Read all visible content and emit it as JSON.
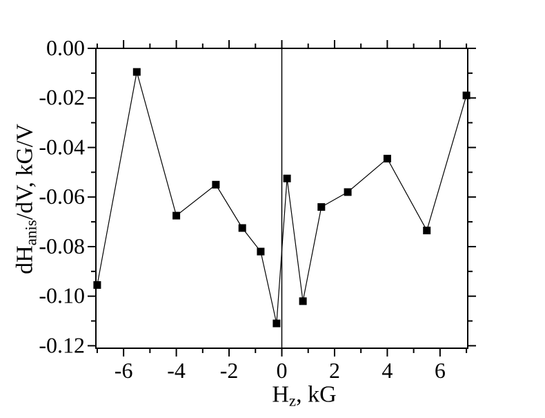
{
  "chart_data": {
    "type": "line",
    "title": "",
    "xlabel": {
      "text": "H",
      "sub": "z",
      "suffix": ", kG"
    },
    "ylabel": {
      "text": "dH",
      "sub": "anis",
      "suffix": "/dV, kG/V"
    },
    "xlim": [
      -7.05,
      7.05
    ],
    "ylim": [
      -0.121,
      0
    ],
    "x": [
      -7,
      -5.5,
      -4,
      -2.5,
      -1.5,
      -0.8,
      -0.2,
      0.2,
      0.8,
      1.5,
      2.5,
      4,
      5.5,
      7
    ],
    "y": [
      -0.0955,
      -0.0095,
      -0.0675,
      -0.055,
      -0.0725,
      -0.082,
      -0.111,
      -0.0525,
      -0.102,
      -0.064,
      -0.058,
      -0.0445,
      -0.0735,
      -0.019
    ],
    "xticks_major": [
      {
        "v": -6,
        "label": "-6"
      },
      {
        "v": -4,
        "label": "-4"
      },
      {
        "v": -2,
        "label": "-2"
      },
      {
        "v": 0,
        "label": "0"
      },
      {
        "v": 2,
        "label": "2"
      },
      {
        "v": 4,
        "label": "4"
      },
      {
        "v": 6,
        "label": "6"
      }
    ],
    "xticks_minor": [
      -7,
      -5,
      -3,
      -1,
      1,
      3,
      5,
      7
    ],
    "yticks_major": [
      {
        "v": 0,
        "label": "0.00"
      },
      {
        "v": -0.02,
        "label": "-0.02"
      },
      {
        "v": -0.04,
        "label": "-0.04"
      },
      {
        "v": -0.06,
        "label": "-0.06"
      },
      {
        "v": -0.08,
        "label": "-0.08"
      },
      {
        "v": -0.1,
        "label": "-0.10"
      },
      {
        "v": -0.12,
        "label": "-0.12"
      }
    ],
    "yticks_minor": [
      -0.01,
      -0.03,
      -0.05,
      -0.07,
      -0.09,
      -0.11
    ],
    "vline_x": 0,
    "marker": "square",
    "legend": null,
    "grid": false,
    "colors": {
      "background": "#ffffff",
      "axis": "#000000",
      "line": "#000000",
      "marker": "#000000",
      "text": "#000000"
    }
  }
}
